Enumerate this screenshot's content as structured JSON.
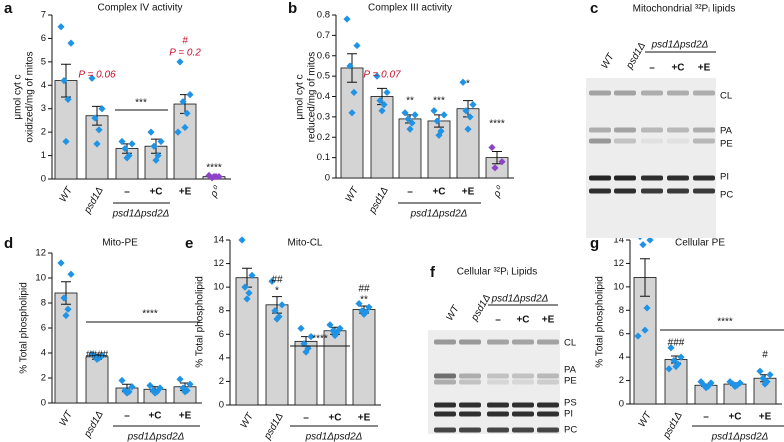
{
  "chart_data": [
    {
      "type": "bar",
      "panel": "a",
      "title": "Complex IV activity",
      "ylabel": [
        "μmol cyt c",
        "oxidized/mg of mitos"
      ],
      "categories": [
        "WT",
        "psd1Δ",
        "–",
        "+C",
        "+E",
        "ρ⁰"
      ],
      "group_label": "psd1Δpsd2Δ",
      "values": [
        4.2,
        2.7,
        1.3,
        1.4,
        3.2,
        0.1
      ],
      "errors": [
        0.7,
        0.4,
        0.2,
        0.3,
        0.4,
        0.05
      ],
      "points": [
        [
          6.5,
          5.8,
          4.2,
          3.4,
          1.6
        ],
        [
          4.3,
          3.0,
          2.6,
          2.1,
          1.5
        ],
        [
          1.6,
          1.5,
          1.3,
          1.0,
          0.9
        ],
        [
          2.0,
          1.6,
          1.4,
          1.0,
          0.8
        ],
        [
          5.0,
          3.6,
          3.3,
          2.8,
          2.2,
          2.0
        ],
        [
          0.15,
          0.1,
          0.05,
          0.1,
          0.1
        ]
      ],
      "color": "#d4d4d4",
      "point_colors": [
        "#1f93e6",
        "#1f93e6",
        "#1f93e6",
        "#1f93e6",
        "#1f93e6",
        "#8e44c9"
      ],
      "ylim": [
        0,
        7
      ],
      "yticks": [
        0,
        1,
        2,
        3,
        4,
        5,
        6,
        7
      ],
      "annotations": [
        {
          "text": "P = 0.06",
          "color": "#c8102e"
        },
        {
          "text": "***"
        },
        {
          "text": "#",
          "color": "#c8102e"
        },
        {
          "text": "P = 0.2",
          "color": "#c8102e"
        },
        {
          "text": "****"
        }
      ]
    },
    {
      "type": "bar",
      "panel": "b",
      "title": "Complex III activity",
      "ylabel": [
        "μmol cyt c",
        "reduced/mg of mitos"
      ],
      "categories": [
        "WT",
        "psd1Δ",
        "–",
        "+C",
        "+E",
        "ρ⁰"
      ],
      "group_label": "psd1Δpsd2Δ",
      "values": [
        0.54,
        0.4,
        0.29,
        0.28,
        0.34,
        0.1
      ],
      "errors": [
        0.07,
        0.04,
        0.02,
        0.03,
        0.04,
        0.03
      ],
      "points": [
        [
          0.78,
          0.65,
          0.55,
          0.42,
          0.32
        ],
        [
          0.5,
          0.42,
          0.38,
          0.36,
          0.33
        ],
        [
          0.32,
          0.31,
          0.29,
          0.27,
          0.24
        ],
        [
          0.33,
          0.31,
          0.28,
          0.23,
          0.21
        ],
        [
          0.47,
          0.36,
          0.33,
          0.3,
          0.24
        ],
        [
          0.15,
          0.08,
          0.05
        ]
      ],
      "color": "#d4d4d4",
      "point_colors": [
        "#1f93e6",
        "#1f93e6",
        "#1f93e6",
        "#1f93e6",
        "#1f93e6",
        "#8e44c9"
      ],
      "ylim": [
        0,
        0.8
      ],
      "yticks": [
        0,
        0.1,
        0.2,
        0.3,
        0.4,
        0.5,
        0.6,
        0.7,
        0.8
      ],
      "annotations": [
        {
          "text": "P = 0.07",
          "color": "#c8102e"
        },
        {
          "text": "**"
        },
        {
          "text": "***"
        },
        {
          "text": "*"
        },
        {
          "text": "****"
        }
      ]
    },
    {
      "type": "bar",
      "panel": "d",
      "title": "Mito-PE",
      "ylabel": [
        "% Total phospholipid"
      ],
      "categories": [
        "WT",
        "psd1Δ",
        "–",
        "+C",
        "+E"
      ],
      "group_label": "psd1Δpsd2Δ",
      "values": [
        8.8,
        3.7,
        1.2,
        1.1,
        1.3
      ],
      "errors": [
        0.9,
        0.2,
        0.3,
        0.2,
        0.3
      ],
      "points": [
        [
          11.2,
          10.3,
          8.4,
          7.5,
          7.0
        ],
        [
          3.9,
          3.8,
          3.7,
          3.6,
          3.5
        ],
        [
          1.8,
          1.3,
          1.0,
          0.9,
          0.8
        ],
        [
          1.4,
          1.2,
          1.0,
          0.9,
          0.8
        ],
        [
          1.9,
          1.5,
          1.2,
          1.0,
          0.9
        ]
      ],
      "color": "#d4d4d4",
      "point_colors": [
        "#1f93e6",
        "#1f93e6",
        "#1f93e6",
        "#1f93e6",
        "#1f93e6"
      ],
      "ylim": [
        0,
        12
      ],
      "yticks": [
        0,
        2,
        4,
        6,
        8,
        10,
        12
      ],
      "annotations": [
        {
          "text": "####"
        },
        {
          "text": "****"
        }
      ]
    },
    {
      "type": "bar",
      "panel": "e",
      "title": "Mito-CL",
      "ylabel": [
        "% Total phospholipid"
      ],
      "categories": [
        "WT",
        "psd1Δ",
        "–",
        "+C",
        "+E"
      ],
      "group_label": "psd1Δpsd2Δ",
      "values": [
        10.8,
        8.5,
        5.4,
        6.3,
        8.1
      ],
      "errors": [
        0.8,
        0.7,
        0.4,
        0.3,
        0.3
      ],
      "points": [
        [
          14.0,
          11.0,
          10.0,
          9.5,
          9.0
        ],
        [
          10.5,
          8.5,
          8.0,
          7.5,
          7.3
        ],
        [
          6.5,
          5.8,
          5.2,
          4.8,
          4.5
        ],
        [
          6.8,
          6.5,
          6.3,
          6.2,
          5.9
        ],
        [
          8.6,
          8.3,
          8.0,
          7.9,
          7.7
        ]
      ],
      "color": "#d4d4d4",
      "point_colors": [
        "#1f93e6",
        "#1f93e6",
        "#1f93e6",
        "#1f93e6",
        "#1f93e6"
      ],
      "ylim": [
        0,
        14
      ],
      "yticks": [
        0,
        2,
        4,
        6,
        8,
        10,
        12,
        14
      ],
      "annotations": [
        {
          "text": "##"
        },
        {
          "text": "*"
        },
        {
          "text": "****"
        },
        {
          "text": "##"
        },
        {
          "text": "**"
        }
      ]
    },
    {
      "type": "bar",
      "panel": "g",
      "title": "Cellular PE",
      "ylabel": [
        "% Total phospholipid"
      ],
      "categories": [
        "WT",
        "psd1Δ",
        "–",
        "+C",
        "+E"
      ],
      "group_label": "psd1Δpsd2Δ",
      "values": [
        10.8,
        3.8,
        1.6,
        1.7,
        2.2
      ],
      "errors": [
        1.6,
        0.3,
        0.1,
        0.1,
        0.3
      ],
      "points": [
        [
          14.3,
          14.0,
          13.6,
          8.2,
          6.3,
          5.8
        ],
        [
          4.8,
          4.0,
          3.7,
          3.4,
          3.2,
          3.0
        ],
        [
          1.9,
          1.8,
          1.6,
          1.5,
          1.4
        ],
        [
          1.9,
          1.8,
          1.7,
          1.6,
          1.5
        ],
        [
          2.8,
          2.5,
          2.2,
          1.9,
          1.7
        ]
      ],
      "color": "#d4d4d4",
      "point_colors": [
        "#1f93e6",
        "#1f93e6",
        "#1f93e6",
        "#1f93e6",
        "#1f93e6"
      ],
      "ylim": [
        0,
        14
      ],
      "yticks": [
        0,
        2,
        4,
        6,
        8,
        10,
        12,
        14
      ],
      "annotations": [
        {
          "text": "###"
        },
        {
          "text": "****"
        },
        {
          "text": "#"
        }
      ]
    }
  ],
  "gels": [
    {
      "panel": "c",
      "title": "Mitochondrial ³²Pᵢ lipids",
      "lanes": [
        "WT",
        "psd1Δ",
        "–",
        "+C",
        "+E"
      ],
      "group_label": "psd1Δpsd2Δ",
      "bands": [
        "CL",
        "PA",
        "PE",
        "PI",
        "PC"
      ]
    },
    {
      "panel": "f",
      "title": "Cellular ³²Pᵢ Lipids",
      "lanes": [
        "WT",
        "psd1Δ",
        "–",
        "+C",
        "+E"
      ],
      "group_label": "psd1Δpsd2Δ",
      "bands": [
        "CL",
        "PA",
        "PE",
        "PS",
        "PI",
        "PC"
      ]
    }
  ]
}
